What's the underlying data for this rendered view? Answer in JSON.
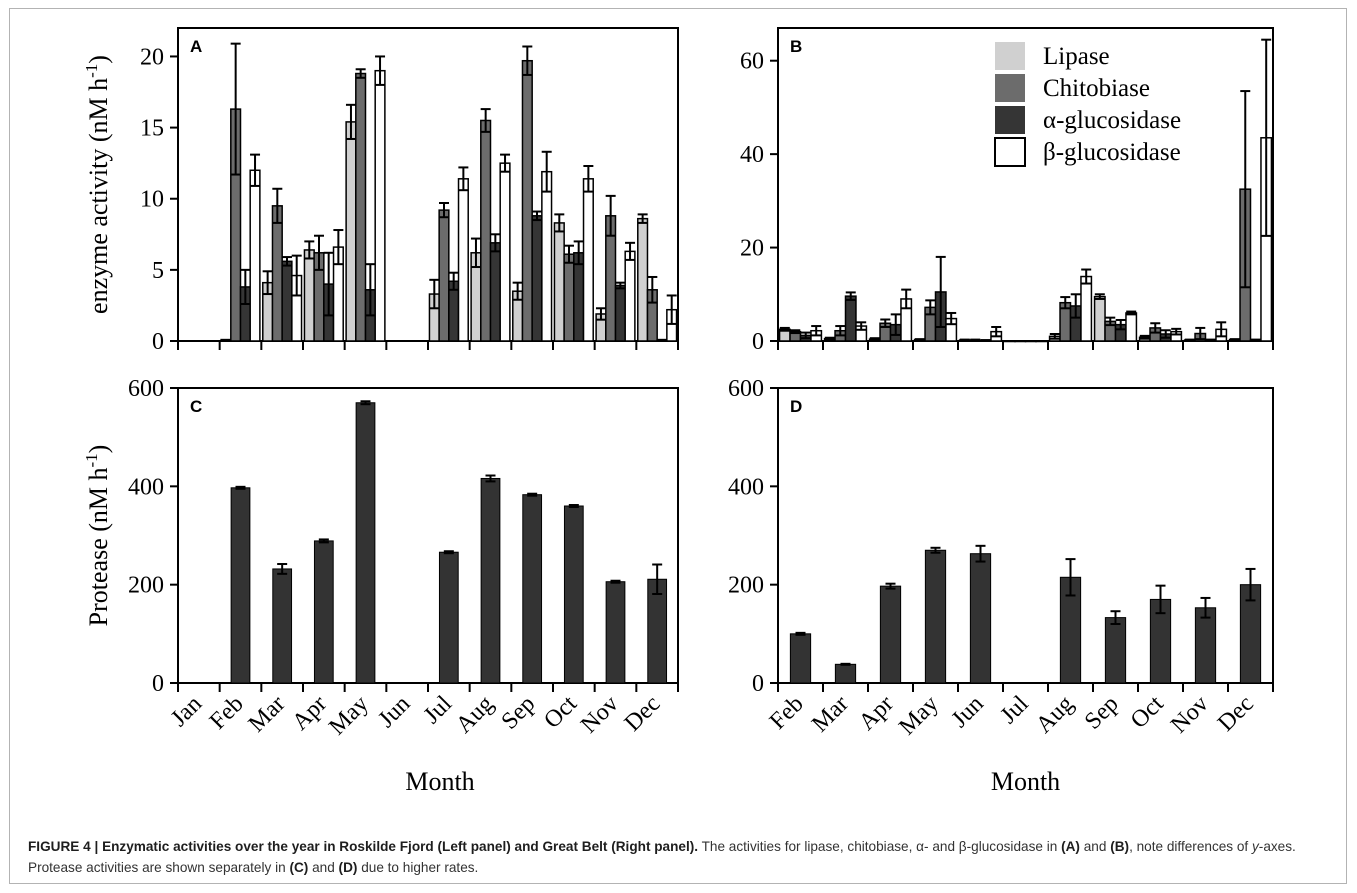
{
  "figure": {
    "caption_label": "FIGURE 4 | ",
    "caption_title": "Enzymatic activities over the year in Roskilde Fjord (Left panel) and Great Belt (Right panel).",
    "caption_part1": " The activities for lipase, chitobiase, α- and β-glucosidase in ",
    "caption_ref_a": "(A)",
    "caption_and1": " and ",
    "caption_ref_b": "(B)",
    "caption_part2": ", note differences of ",
    "caption_yaxes": "y",
    "caption_part3": "-axes. Protease activities are shown separately in ",
    "caption_ref_c": "(C)",
    "caption_and2": " and ",
    "caption_ref_d": "(D)",
    "caption_part4": " due to higher rates."
  },
  "colors": {
    "lipase": "#d0d0d0",
    "chitobiase": "#6c6c6c",
    "alpha": "#353535",
    "beta": "#ffffff",
    "protease": "#333333"
  },
  "chart_data": [
    {
      "panel": "A",
      "type": "bar",
      "ylabel": "enzyme activity (nM h",
      "ylabel_sup": "-1",
      "ylabel_close": ")",
      "ylim": [
        0,
        22
      ],
      "yticks": [
        0,
        5,
        10,
        15,
        20
      ],
      "categories": [
        "Jan",
        "Feb",
        "Mar",
        "Apr",
        "May",
        "Jun",
        "Jul",
        "Aug",
        "Sep",
        "Oct",
        "Nov",
        "Dec"
      ],
      "series": [
        {
          "name": "Lipase",
          "values": [
            null,
            0.1,
            4.1,
            6.4,
            15.4,
            null,
            3.3,
            6.2,
            3.5,
            8.3,
            1.9,
            8.6
          ],
          "errors": [
            0,
            0,
            0.8,
            0.6,
            1.2,
            0,
            1,
            1,
            0.6,
            0.6,
            0.4,
            0.3
          ]
        },
        {
          "name": "Chitobiase",
          "values": [
            null,
            16.3,
            9.5,
            6.2,
            18.8,
            null,
            9.2,
            15.5,
            19.7,
            6.1,
            8.8,
            3.6
          ],
          "errors": [
            0,
            4.6,
            1.2,
            1.2,
            0.3,
            0,
            0.5,
            0.8,
            1,
            0.6,
            1.4,
            0.9
          ]
        },
        {
          "name": "α-glucosidase",
          "values": [
            null,
            3.8,
            5.6,
            4.0,
            3.6,
            null,
            4.2,
            6.9,
            8.8,
            6.2,
            3.9,
            0.1
          ],
          "errors": [
            0,
            1.2,
            0.3,
            2.2,
            1.8,
            0,
            0.6,
            0.6,
            0.3,
            0.8,
            0.2,
            0
          ]
        },
        {
          "name": "β-glucosidase",
          "values": [
            null,
            12.0,
            4.6,
            6.6,
            19.0,
            null,
            11.4,
            12.5,
            11.9,
            11.4,
            6.3,
            2.2
          ],
          "errors": [
            0,
            1.1,
            1.4,
            1.2,
            1,
            0,
            0.8,
            0.6,
            1.4,
            0.9,
            0.6,
            1
          ]
        }
      ]
    },
    {
      "panel": "B",
      "type": "bar",
      "ylim": [
        0,
        67
      ],
      "yticks": [
        0,
        20,
        40,
        60
      ],
      "categories": [
        "Feb",
        "Mar",
        "Apr",
        "May",
        "Jun",
        "Jul",
        "Aug",
        "Sep",
        "Oct",
        "Nov",
        "Dec"
      ],
      "legend_position": "top-right",
      "series": [
        {
          "name": "Lipase",
          "values": [
            2.5,
            0.5,
            0.4,
            0.3,
            0.2,
            0,
            1.0,
            9.5,
            0.8,
            0.2,
            0.3
          ],
          "errors": [
            0.3,
            0.2,
            0.2,
            0.1,
            0.1,
            0,
            0.5,
            0.5,
            0.3,
            0.1,
            0.1
          ]
        },
        {
          "name": "Chitobiase",
          "values": [
            2.0,
            2.2,
            3.8,
            7.2,
            0.2,
            0,
            8.2,
            4.2,
            2.8,
            1.6,
            32.5
          ],
          "errors": [
            0.3,
            1,
            0.8,
            1.5,
            0.1,
            0,
            1.2,
            0.8,
            1,
            1.2,
            21
          ]
        },
        {
          "name": "α-glucosidase",
          "values": [
            1.2,
            9.6,
            3.5,
            10.5,
            0.1,
            0,
            7.5,
            3.5,
            1.5,
            0.2,
            0.2
          ],
          "errors": [
            0.6,
            0.8,
            2.2,
            7.5,
            0.1,
            0,
            2.5,
            1,
            0.8,
            0.1,
            0.1
          ]
        },
        {
          "name": "β-glucosidase",
          "values": [
            2.2,
            3.2,
            9.0,
            4.8,
            2.0,
            0,
            13.8,
            6.0,
            2.0,
            2.5,
            43.5
          ],
          "errors": [
            1,
            0.8,
            2,
            1.2,
            1,
            0,
            1.5,
            0.3,
            0.6,
            1.5,
            21
          ]
        }
      ]
    },
    {
      "panel": "C",
      "type": "bar",
      "ylabel": "Protease (nM h",
      "ylabel_sup": "-1",
      "ylabel_close": ")",
      "ylim": [
        0,
        600
      ],
      "yticks": [
        0,
        200,
        400,
        600
      ],
      "categories": [
        "Jan",
        "Feb",
        "Mar",
        "Apr",
        "May",
        "Jun",
        "Jul",
        "Aug",
        "Sep",
        "Oct",
        "Nov",
        "Dec"
      ],
      "xlabel": "Month",
      "series": [
        {
          "name": "Protease",
          "values": [
            null,
            397,
            232,
            289,
            570,
            null,
            266,
            416,
            383,
            360,
            206,
            211
          ],
          "errors": [
            0,
            2,
            10,
            3,
            3,
            0,
            2,
            6,
            2,
            2,
            2,
            30
          ]
        }
      ]
    },
    {
      "panel": "D",
      "type": "bar",
      "ylim": [
        0,
        600
      ],
      "yticks": [
        0,
        200,
        400,
        600
      ],
      "categories": [
        "Feb",
        "Mar",
        "Apr",
        "May",
        "Jun",
        "Jul",
        "Aug",
        "Sep",
        "Oct",
        "Nov",
        "Dec"
      ],
      "xlabel": "Month",
      "series": [
        {
          "name": "Protease",
          "values": [
            100,
            38,
            197,
            270,
            263,
            null,
            215,
            133,
            170,
            153,
            200
          ],
          "errors": [
            2,
            1,
            5,
            5,
            16,
            0,
            37,
            13,
            28,
            20,
            32
          ]
        }
      ]
    }
  ]
}
